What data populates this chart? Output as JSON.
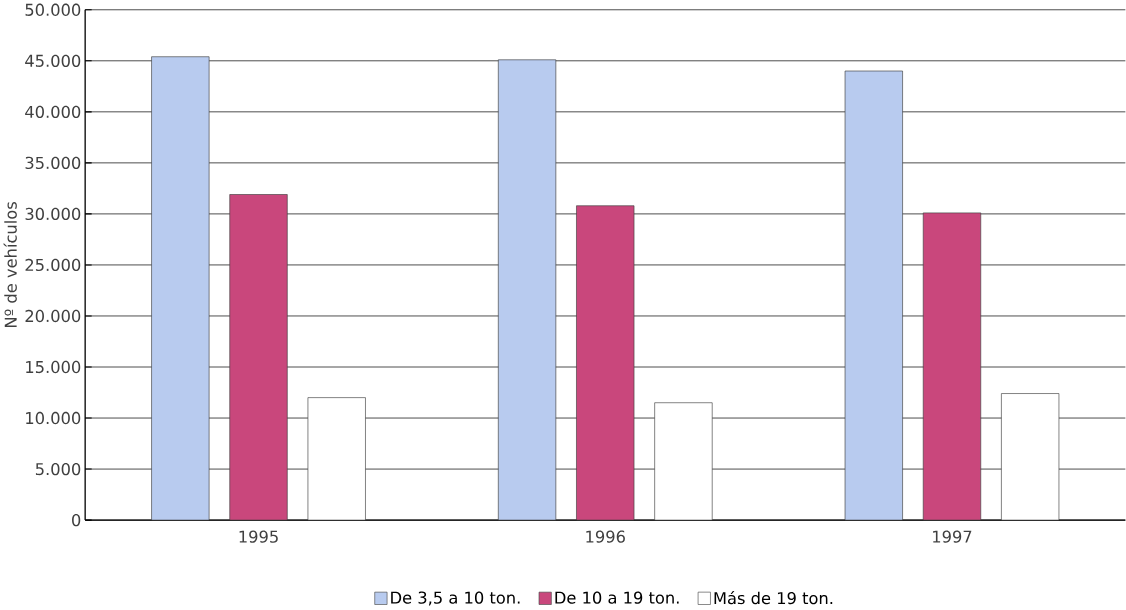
{
  "chart_data": {
    "type": "bar",
    "ylabel": "Nº de vehículos",
    "categories": [
      "1995",
      "1996",
      "1997"
    ],
    "series": [
      {
        "name": "De 3,5 a 10 ton.",
        "color": "#b8cbef",
        "values": [
          45400,
          45100,
          44000
        ]
      },
      {
        "name": "De 10 a 19 ton.",
        "color": "#c9477c",
        "values": [
          31900,
          30800,
          30100
        ]
      },
      {
        "name": "Más de 19 ton.",
        "color": "#ffffff",
        "values": [
          12000,
          11500,
          12400
        ]
      }
    ],
    "ylim": [
      0,
      50000
    ],
    "yticks": [
      0,
      {
        "value": 5000,
        "label": "5.000"
      },
      {
        "value": 10000,
        "label": "10.000"
      },
      {
        "value": 15000,
        "label": "15.000"
      },
      {
        "value": 20000,
        "label": "20.000"
      },
      {
        "value": 25000,
        "label": "25.000"
      },
      {
        "value": 30000,
        "label": "30.000"
      },
      {
        "value": 35000,
        "label": "35.000"
      },
      {
        "value": 40000,
        "label": "40.000"
      },
      {
        "value": 45000,
        "label": "45.000"
      },
      {
        "value": 50000,
        "label": "50.000"
      }
    ],
    "grid": "y",
    "legend": "bottom"
  }
}
